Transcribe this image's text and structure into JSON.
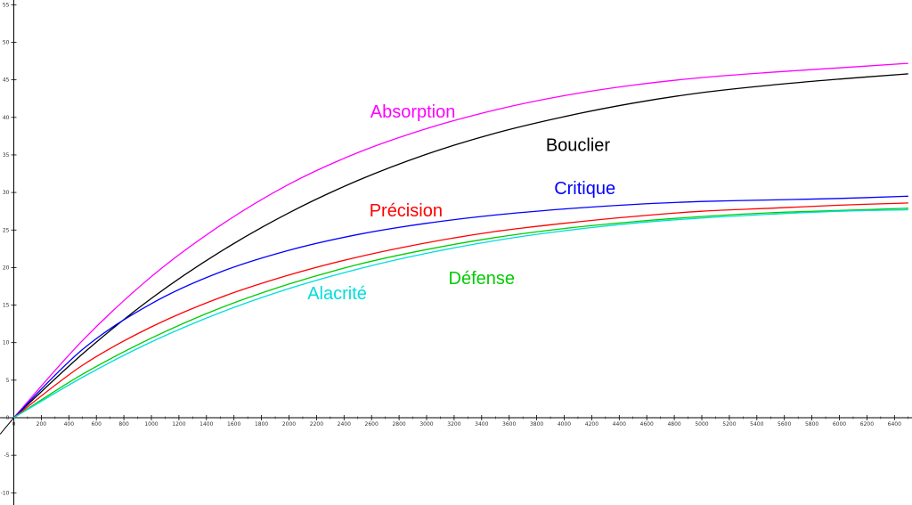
{
  "chart_data": {
    "type": "line",
    "title": "",
    "xlabel": "",
    "ylabel": "",
    "xlim": [
      -100,
      6500
    ],
    "ylim": [
      -12,
      55
    ],
    "grid": false,
    "x_ticks": [
      0,
      200,
      400,
      600,
      800,
      1000,
      1200,
      1400,
      1600,
      1800,
      2000,
      2200,
      2400,
      2600,
      2800,
      3000,
      3200,
      3400,
      3600,
      3800,
      4000,
      4200,
      4400,
      4600,
      4800,
      5000,
      5200,
      5400,
      5600,
      5800,
      6000,
      6200,
      6400
    ],
    "y_ticks": [
      -10,
      -5,
      0,
      5,
      10,
      15,
      20,
      25,
      30,
      35,
      40,
      45,
      50,
      55
    ],
    "x": [
      0,
      500,
      1000,
      1500,
      2000,
      2500,
      3000,
      3500,
      4000,
      4500,
      5000,
      5500,
      6000,
      6500
    ],
    "series": [
      {
        "name": "Absorption",
        "color": "#ff00ff",
        "values": [
          0,
          10.3,
          18.8,
          25.6,
          31.1,
          35.3,
          38.5,
          41.0,
          42.9,
          44.3,
          45.3,
          46.0,
          46.6,
          47.2
        ]
      },
      {
        "name": "Bouclier",
        "color": "#000000",
        "values": [
          0,
          8.5,
          15.9,
          22.1,
          27.3,
          31.6,
          35.1,
          37.9,
          40.1,
          41.9,
          43.3,
          44.3,
          45.1,
          45.8
        ]
      },
      {
        "name": "Critique",
        "color": "#0000ff",
        "values": [
          0,
          9.1,
          15.2,
          19.4,
          22.3,
          24.4,
          25.9,
          27.0,
          27.8,
          28.4,
          28.8,
          29.0,
          29.2,
          29.5
        ]
      },
      {
        "name": "Précision",
        "color": "#ff0000",
        "values": [
          0,
          7.0,
          12.1,
          16.0,
          19.0,
          21.4,
          23.3,
          24.8,
          25.9,
          26.8,
          27.5,
          27.9,
          28.3,
          28.6
        ]
      },
      {
        "name": "Défense",
        "color": "#00cc00",
        "values": [
          0,
          5.8,
          10.6,
          14.6,
          17.8,
          20.4,
          22.4,
          24.0,
          25.2,
          26.1,
          26.8,
          27.3,
          27.6,
          27.9
        ]
      },
      {
        "name": "Alacrité",
        "color": "#00dddd",
        "values": [
          0,
          5.4,
          10.1,
          14.0,
          17.2,
          19.8,
          21.9,
          23.6,
          24.9,
          25.9,
          26.6,
          27.1,
          27.5,
          27.7
        ]
      }
    ],
    "labels": [
      {
        "text": "Absorption",
        "color": "#ff00ff",
        "x": 2900,
        "y": 40
      },
      {
        "text": "Bouclier",
        "color": "#000000",
        "x": 4100,
        "y": 35.5
      },
      {
        "text": "Critique",
        "color": "#0000ff",
        "x": 4150,
        "y": 29.8
      },
      {
        "text": "Précision",
        "color": "#ff0000",
        "x": 2850,
        "y": 26.8
      },
      {
        "text": "Défense",
        "color": "#00cc00",
        "x": 3400,
        "y": 17.8
      },
      {
        "text": "Alacrité",
        "color": "#00dddd",
        "x": 2350,
        "y": 15.8
      }
    ]
  }
}
